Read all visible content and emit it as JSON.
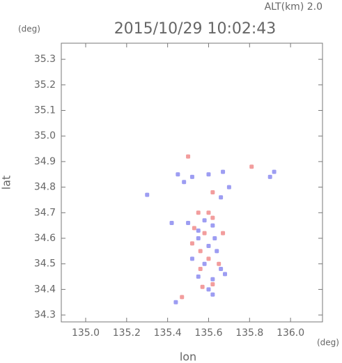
{
  "chart_data": {
    "type": "scatter",
    "title": "2015/10/29 10:02:43",
    "subtitle": "ALT(km)  2.0",
    "y_unit": "(deg)",
    "x_unit": "(deg)",
    "x_label": "lon",
    "y_label": "lat",
    "xlim": [
      134.881,
      136.156
    ],
    "ylim": [
      34.273,
      35.363
    ],
    "xticks": [
      {
        "value": 135.0,
        "label": "135.0"
      },
      135.2,
      135.4,
      135.6,
      135.8,
      {
        "value": 136.0,
        "label": "136.0"
      }
    ],
    "yticks": [
      34.3,
      34.4,
      34.5,
      34.6,
      34.7,
      34.8,
      34.9,
      {
        "value": 35.0,
        "label": "35.0"
      },
      35.1,
      35.2,
      35.3
    ],
    "grid": false,
    "series": [
      {
        "color": "#8c8cf0",
        "x": [
          135.45,
          135.48,
          135.52,
          135.6,
          135.67,
          135.7,
          135.66,
          135.92,
          135.9,
          135.42,
          135.5,
          135.58,
          135.62,
          135.55,
          135.6,
          135.64,
          135.52,
          135.58,
          135.66,
          135.55,
          135.62,
          135.68,
          135.6,
          135.62,
          135.44,
          135.3,
          135.55,
          135.63
        ],
        "values": [
          34.85,
          34.82,
          34.84,
          34.85,
          34.86,
          34.8,
          34.76,
          34.86,
          34.84,
          34.66,
          34.66,
          34.67,
          34.65,
          34.6,
          34.57,
          34.55,
          34.52,
          34.5,
          34.48,
          34.45,
          34.44,
          34.46,
          34.4,
          34.38,
          34.35,
          34.77,
          34.63,
          34.6
        ]
      },
      {
        "color": "#f08c8c",
        "x": [
          135.5,
          135.81,
          135.62,
          135.55,
          135.6,
          135.53,
          135.58,
          135.56,
          135.6,
          135.56,
          135.57,
          135.62,
          135.47,
          135.65,
          135.52,
          135.62,
          135.67
        ],
        "values": [
          34.92,
          34.88,
          34.78,
          34.7,
          34.7,
          34.64,
          34.62,
          34.55,
          34.52,
          34.48,
          34.41,
          34.42,
          34.37,
          34.5,
          34.58,
          34.68,
          34.62
        ]
      }
    ]
  }
}
